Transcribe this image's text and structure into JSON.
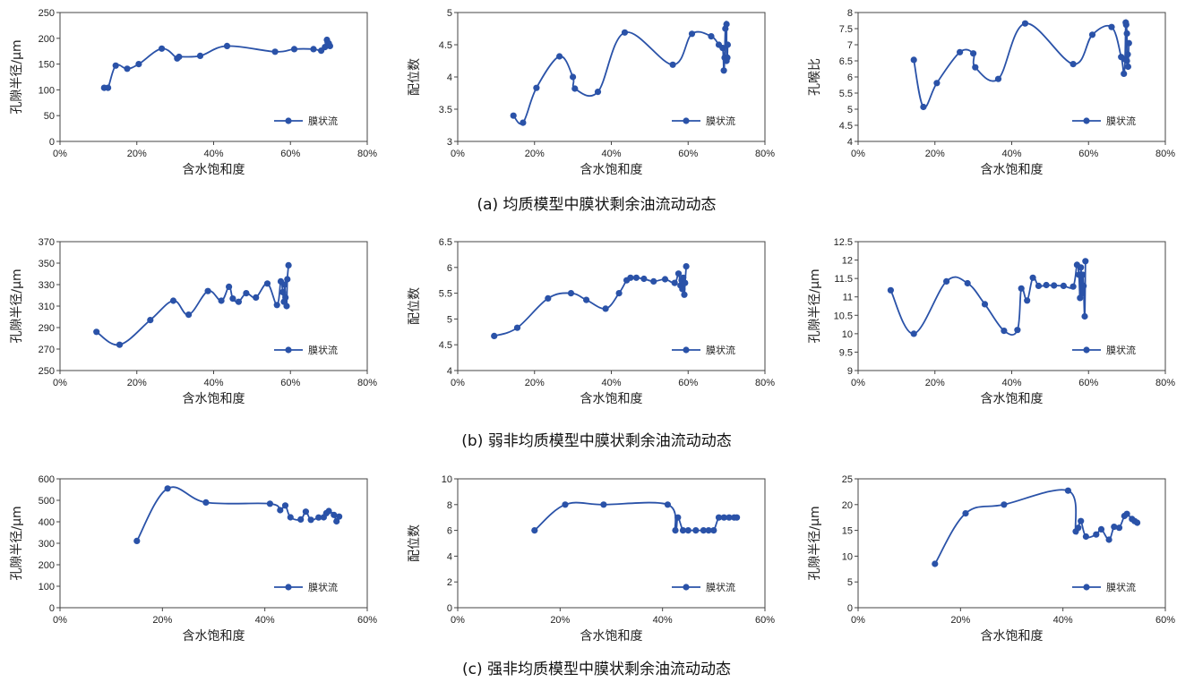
{
  "colors": {
    "series": "#2a52a8",
    "axis": "#444444"
  },
  "captions": [
    "(a) 均质模型中膜状剩余油流动动态",
    "(b) 弱非均质模型中膜状剩余油流动动态",
    "(c) 强非均质模型中膜状剩余油流动动态"
  ],
  "chart_data": [
    {
      "type": "line",
      "xlabel": "含水饱和度",
      "ylabel": "孔隙半径/μm",
      "xlim": [
        0,
        0.8
      ],
      "ylim": [
        0,
        250
      ],
      "xticks": [
        0,
        0.2,
        0.4,
        0.6,
        0.8
      ],
      "xticklabels": [
        "0%",
        "20%",
        "40%",
        "60%",
        "80%"
      ],
      "yticks": [
        0,
        50,
        100,
        150,
        200,
        250
      ],
      "yticklabels": [
        "0",
        "50",
        "100",
        "150",
        "200",
        "250"
      ],
      "legend": "bottom-right",
      "series": [
        {
          "name": "膜状流",
          "x": [
            0.115,
            0.125,
            0.145,
            0.175,
            0.205,
            0.265,
            0.305,
            0.31,
            0.365,
            0.435,
            0.56,
            0.61,
            0.66,
            0.68,
            0.69,
            0.695,
            0.697,
            0.7,
            0.7,
            0.703
          ],
          "y": [
            104,
            104,
            147,
            141,
            150,
            180,
            161,
            164,
            166,
            185,
            174,
            179,
            179,
            176,
            183,
            197,
            192,
            187,
            190,
            185
          ]
        }
      ]
    },
    {
      "type": "line",
      "xlabel": "含水饱和度",
      "ylabel": "配位数",
      "xlim": [
        0,
        0.8
      ],
      "ylim": [
        3,
        5
      ],
      "xticks": [
        0,
        0.2,
        0.4,
        0.6,
        0.8
      ],
      "xticklabels": [
        "0%",
        "20%",
        "40%",
        "60%",
        "80%"
      ],
      "yticks": [
        3,
        3.5,
        4,
        4.5,
        5
      ],
      "yticklabels": [
        "3",
        "3.5",
        "4",
        "4.5",
        "5"
      ],
      "legend": "bottom-right",
      "series": [
        {
          "name": "膜状流",
          "x": [
            0.145,
            0.17,
            0.205,
            0.265,
            0.3,
            0.305,
            0.365,
            0.435,
            0.56,
            0.61,
            0.66,
            0.68,
            0.69,
            0.693,
            0.695,
            0.697,
            0.7,
            0.7,
            0.702,
            0.703
          ],
          "y": [
            3.4,
            3.29,
            3.83,
            4.32,
            4.0,
            3.82,
            3.77,
            4.69,
            4.19,
            4.67,
            4.63,
            4.5,
            4.45,
            4.1,
            4.3,
            4.75,
            4.82,
            4.25,
            4.3,
            4.5
          ]
        }
      ]
    },
    {
      "type": "line",
      "xlabel": "含水饱和度",
      "ylabel": "孔喉比",
      "xlim": [
        0,
        0.8
      ],
      "ylim": [
        4,
        8
      ],
      "xticks": [
        0,
        0.2,
        0.4,
        0.6,
        0.8
      ],
      "xticklabels": [
        "0%",
        "20%",
        "40%",
        "60%",
        "80%"
      ],
      "yticks": [
        4,
        4.5,
        5,
        5.5,
        6,
        6.5,
        7,
        7.5,
        8
      ],
      "yticklabels": [
        "4",
        "4.5",
        "5",
        "5.5",
        "6",
        "6.5",
        "7",
        "7.5",
        "8"
      ],
      "legend": "bottom-right",
      "series": [
        {
          "name": "膜状流",
          "x": [
            0.145,
            0.17,
            0.205,
            0.265,
            0.3,
            0.305,
            0.365,
            0.435,
            0.56,
            0.61,
            0.66,
            0.685,
            0.692,
            0.695,
            0.697,
            0.698,
            0.7,
            0.7,
            0.702,
            0.703,
            0.705
          ],
          "y": [
            6.53,
            5.07,
            5.81,
            6.77,
            6.73,
            6.3,
            5.94,
            7.66,
            6.4,
            7.31,
            7.55,
            6.62,
            6.1,
            6.55,
            7.69,
            7.62,
            7.35,
            6.5,
            6.7,
            6.32,
            7.05
          ]
        }
      ]
    },
    {
      "type": "line",
      "xlabel": "含水饱和度",
      "ylabel": "孔隙半径/μm",
      "xlim": [
        0,
        0.8
      ],
      "ylim": [
        250,
        370
      ],
      "xticks": [
        0,
        0.2,
        0.4,
        0.6,
        0.8
      ],
      "xticklabels": [
        "0%",
        "20%",
        "40%",
        "60%",
        "80%"
      ],
      "yticks": [
        250,
        270,
        290,
        310,
        330,
        350,
        370
      ],
      "yticklabels": [
        "250",
        "270",
        "290",
        "310",
        "330",
        "350",
        "370"
      ],
      "legend": "bottom-right",
      "series": [
        {
          "name": "膜状流",
          "x": [
            0.095,
            0.155,
            0.235,
            0.295,
            0.335,
            0.385,
            0.42,
            0.44,
            0.45,
            0.465,
            0.485,
            0.51,
            0.54,
            0.565,
            0.575,
            0.58,
            0.583,
            0.585,
            0.587,
            0.59,
            0.592,
            0.595
          ],
          "y": [
            286,
            274,
            297,
            315,
            302,
            324,
            315,
            328,
            317,
            314,
            322,
            318,
            331,
            311,
            333,
            323,
            314,
            330,
            318,
            310,
            335,
            348
          ]
        }
      ]
    },
    {
      "type": "line",
      "xlabel": "含水饱和度",
      "ylabel": "配位数",
      "xlim": [
        0,
        0.8
      ],
      "ylim": [
        4,
        6.5
      ],
      "xticks": [
        0,
        0.2,
        0.4,
        0.6,
        0.8
      ],
      "xticklabels": [
        "0%",
        "20%",
        "40%",
        "60%",
        "80%"
      ],
      "yticks": [
        4,
        4.5,
        5,
        5.5,
        6,
        6.5
      ],
      "yticklabels": [
        "4",
        "4.5",
        "5",
        "5.5",
        "6",
        "6.5"
      ],
      "legend": "bottom-right",
      "series": [
        {
          "name": "膜状流",
          "x": [
            0.095,
            0.155,
            0.235,
            0.295,
            0.335,
            0.385,
            0.42,
            0.44,
            0.45,
            0.465,
            0.485,
            0.51,
            0.54,
            0.565,
            0.575,
            0.58,
            0.583,
            0.585,
            0.587,
            0.59,
            0.592,
            0.595
          ],
          "y": [
            4.67,
            4.83,
            5.4,
            5.5,
            5.37,
            5.2,
            5.5,
            5.75,
            5.8,
            5.8,
            5.78,
            5.73,
            5.77,
            5.7,
            5.88,
            5.65,
            5.75,
            5.58,
            5.8,
            5.47,
            5.7,
            6.02
          ]
        }
      ]
    },
    {
      "type": "line",
      "xlabel": "含水饱和度",
      "ylabel": "孔隙半径/μm",
      "xlim": [
        0,
        0.8
      ],
      "ylim": [
        9,
        12.5
      ],
      "xticks": [
        0,
        0.2,
        0.4,
        0.6,
        0.8
      ],
      "xticklabels": [
        "0%",
        "20%",
        "40%",
        "60%",
        "80%"
      ],
      "yticks": [
        9,
        9.5,
        10,
        10.5,
        11,
        11.5,
        12,
        12.5
      ],
      "yticklabels": [
        "9",
        "9.5",
        "10",
        "10.5",
        "11",
        "11.5",
        "12",
        "12.5"
      ],
      "legend": "bottom-right",
      "series": [
        {
          "name": "膜状流",
          "x": [
            0.085,
            0.145,
            0.23,
            0.285,
            0.33,
            0.38,
            0.415,
            0.425,
            0.44,
            0.455,
            0.47,
            0.49,
            0.51,
            0.535,
            0.56,
            0.57,
            0.575,
            0.578,
            0.58,
            0.583,
            0.585,
            0.587,
            0.59,
            0.592
          ],
          "y": [
            11.18,
            10.0,
            11.42,
            11.37,
            10.8,
            10.08,
            10.1,
            11.23,
            10.9,
            11.52,
            11.3,
            11.32,
            11.31,
            11.3,
            11.28,
            11.87,
            11.6,
            10.97,
            11.8,
            11.1,
            11.6,
            11.3,
            10.47,
            11.97
          ]
        }
      ]
    },
    {
      "type": "line",
      "xlabel": "含水饱和度",
      "ylabel": "孔隙半径/μm",
      "xlim": [
        0,
        0.6
      ],
      "ylim": [
        0,
        600
      ],
      "xticks": [
        0,
        0.2,
        0.4,
        0.6
      ],
      "xticklabels": [
        "0%",
        "20%",
        "40%",
        "60%"
      ],
      "yticks": [
        0,
        100,
        200,
        300,
        400,
        500,
        600
      ],
      "yticklabels": [
        "0",
        "100",
        "200",
        "300",
        "400",
        "500",
        "600"
      ],
      "legend": "bottom-right",
      "series": [
        {
          "name": "膜状流",
          "x": [
            0.15,
            0.21,
            0.285,
            0.41,
            0.43,
            0.44,
            0.45,
            0.47,
            0.48,
            0.49,
            0.505,
            0.515,
            0.52,
            0.525,
            0.535,
            0.54,
            0.545
          ],
          "y": [
            311,
            555,
            490,
            484,
            454,
            476,
            421,
            411,
            447,
            409,
            420,
            421,
            440,
            450,
            432,
            402,
            424
          ]
        }
      ]
    },
    {
      "type": "line",
      "xlabel": "含水饱和度",
      "ylabel": "配位数",
      "xlim": [
        0,
        0.6
      ],
      "ylim": [
        0,
        10
      ],
      "xticks": [
        0,
        0.2,
        0.4,
        0.6
      ],
      "xticklabels": [
        "0%",
        "20%",
        "40%",
        "60%"
      ],
      "yticks": [
        0,
        2,
        4,
        6,
        8,
        10
      ],
      "yticklabels": [
        "0",
        "2",
        "4",
        "6",
        "8",
        "10"
      ],
      "legend": "bottom-right",
      "series": [
        {
          "name": "膜状流",
          "x": [
            0.15,
            0.21,
            0.285,
            0.41,
            0.425,
            0.43,
            0.44,
            0.45,
            0.465,
            0.48,
            0.49,
            0.5,
            0.51,
            0.52,
            0.53,
            0.54,
            0.545
          ],
          "y": [
            6,
            8,
            8,
            8,
            6,
            7,
            6,
            6,
            6,
            6,
            6,
            6,
            7,
            7,
            7,
            7,
            7
          ]
        }
      ]
    },
    {
      "type": "line",
      "xlabel": "含水饱和度",
      "ylabel": "孔隙半径/μm",
      "xlim": [
        0,
        0.6
      ],
      "ylim": [
        0,
        25
      ],
      "xticks": [
        0,
        0.2,
        0.4,
        0.6
      ],
      "xticklabels": [
        "0%",
        "20%",
        "40%",
        "60%"
      ],
      "yticks": [
        0,
        5,
        10,
        15,
        20,
        25
      ],
      "yticklabels": [
        "0",
        "5",
        "10",
        "15",
        "20",
        "25"
      ],
      "legend": "bottom-right",
      "series": [
        {
          "name": "膜状流",
          "x": [
            0.15,
            0.21,
            0.285,
            0.41,
            0.425,
            0.43,
            0.435,
            0.445,
            0.465,
            0.475,
            0.49,
            0.5,
            0.51,
            0.52,
            0.525,
            0.535,
            0.54,
            0.545
          ],
          "y": [
            8.5,
            18.3,
            20.0,
            22.7,
            14.8,
            15.5,
            16.8,
            13.8,
            14.2,
            15.2,
            13.2,
            15.7,
            15.5,
            17.8,
            18.2,
            17.2,
            16.8,
            16.5
          ]
        }
      ]
    }
  ]
}
